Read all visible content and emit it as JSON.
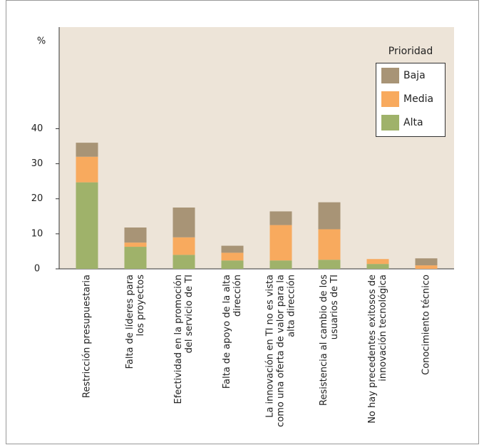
{
  "chart_data": {
    "type": "stacked-bar",
    "y_label": "%",
    "legend_title": "Prioridad",
    "categories": [
      [
        "Restricción presupuestaria"
      ],
      [
        "Falta de líderes para",
        "los proyectos"
      ],
      [
        "Efectividad en la promoción",
        "del servicio de TI"
      ],
      [
        "Falta de apoyo de la alta",
        "dirección"
      ],
      [
        "La innovación en TI no es vista",
        "como una oferta de valor para la",
        "alta dirección"
      ],
      [
        "Resistencia al cambio de los",
        "usuarios de TI"
      ],
      [
        "No hay precedentes exitosos de",
        "innovación tecnológica"
      ],
      [
        "Conocimiento técnico"
      ]
    ],
    "series": [
      {
        "name": "Alta",
        "color": "#9fb26a",
        "values": [
          24.7,
          6.3,
          4,
          2.4,
          2.4,
          2.6,
          1.4,
          0
        ]
      },
      {
        "name": "Media",
        "color": "#f8aa5e",
        "values": [
          7.3,
          1.2,
          5,
          2.2,
          10.1,
          8.7,
          1.4,
          1
        ]
      },
      {
        "name": "Baja",
        "color": "#a89476",
        "values": [
          4,
          4.3,
          8.5,
          2,
          3.9,
          7.7,
          0,
          2
        ]
      }
    ],
    "ylim": [
      0,
      69
    ],
    "yticks": [
      0,
      10,
      20,
      30,
      40
    ],
    "legend_position": "upper right"
  }
}
